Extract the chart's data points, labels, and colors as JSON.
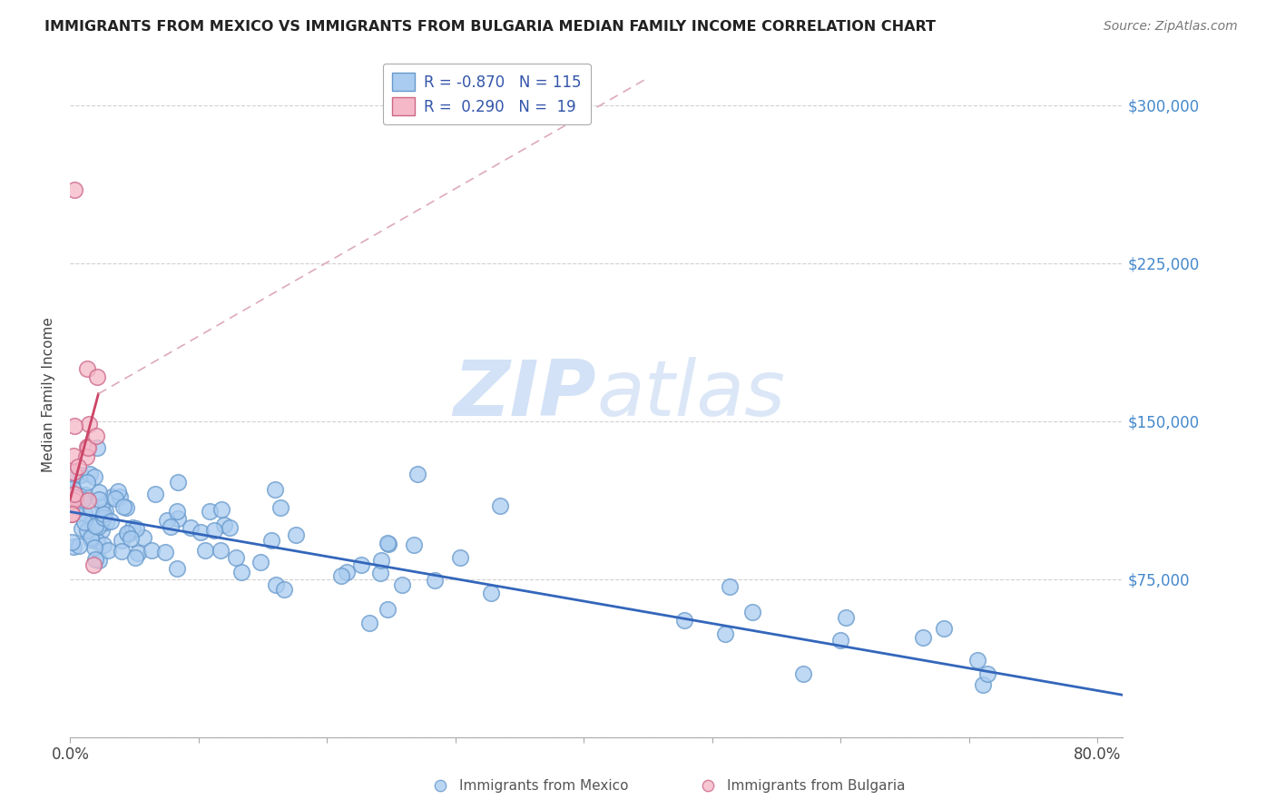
{
  "title": "IMMIGRANTS FROM MEXICO VS IMMIGRANTS FROM BULGARIA MEDIAN FAMILY INCOME CORRELATION CHART",
  "source": "Source: ZipAtlas.com",
  "ylabel": "Median Family Income",
  "xlim": [
    0.0,
    0.82
  ],
  "ylim": [
    0,
    325000
  ],
  "yticks": [
    0,
    75000,
    150000,
    225000,
    300000
  ],
  "ytick_labels": [
    "",
    "$75,000",
    "$150,000",
    "$225,000",
    "$300,000"
  ],
  "xticks": [
    0.0,
    0.1,
    0.2,
    0.3,
    0.4,
    0.5,
    0.6,
    0.7,
    0.8
  ],
  "xtick_labels_show": [
    0,
    8
  ],
  "grid_color": "#cccccc",
  "background_color": "#ffffff",
  "mexico_color": "#aaccf0",
  "mexico_edge_color": "#6699cc",
  "bulgaria_color": "#f5b8c8",
  "bulgaria_edge_color": "#cc6688",
  "mexico_line_color": "#3366bb",
  "bulgaria_solid_color": "#cc4466",
  "bulgaria_dashed_color": "#ddaabb",
  "title_color": "#222222",
  "source_color": "#777777",
  "yaxis_label_color": "#4488cc",
  "watermark_color": "#ccddf5",
  "mexico_N": 115,
  "bulgaria_N": 19,
  "mexico_line_x0": 0.0,
  "mexico_line_y0": 107000,
  "mexico_line_x1": 0.82,
  "mexico_line_y1": 20000,
  "bulgaria_solid_x0": 0.0,
  "bulgaria_solid_y0": 113000,
  "bulgaria_solid_x1": 0.022,
  "bulgaria_solid_y1": 163000,
  "bulgaria_dash_x0": 0.022,
  "bulgaria_dash_y0": 163000,
  "bulgaria_dash_x1": 0.45,
  "bulgaria_dash_y1": 313000,
  "legend_mexico_label": "R = -0.870   N = 115",
  "legend_bulgaria_label": "R =  0.290   N =  19",
  "bottom_legend_mexico": "Immigrants from Mexico",
  "bottom_legend_bulgaria": "Immigrants from Bulgaria"
}
